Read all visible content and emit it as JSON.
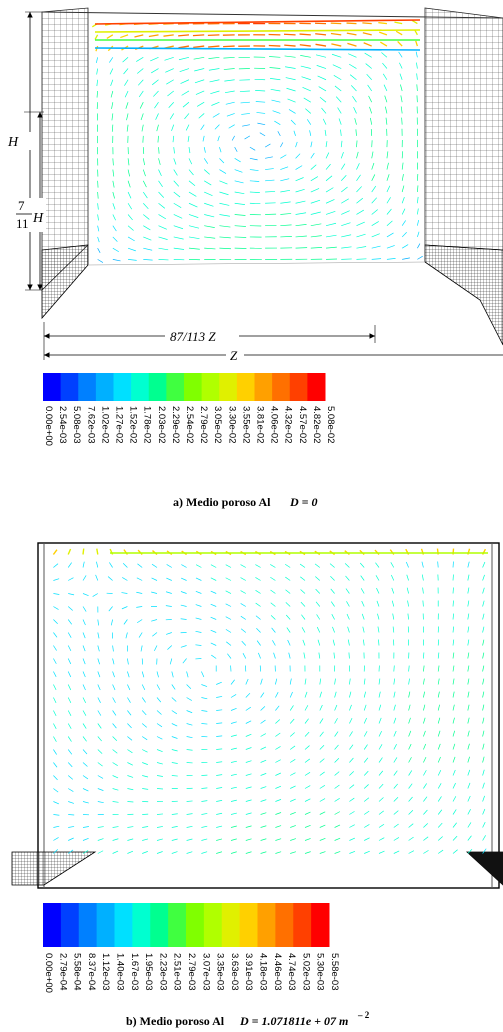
{
  "panel_a": {
    "dimension_labels": {
      "h": "H",
      "frac_num": "7",
      "frac_den": "11",
      "frac_var": "H",
      "inner_width": "87/113 Z",
      "outer_width": "Z"
    },
    "colorbar_ticks": [
      "0.00e+00",
      "2.54e-03",
      "5.08e-03",
      "7.62e-03",
      "1.02e-02",
      "1.27e-02",
      "1.52e-02",
      "1.78e-02",
      "2.03e-02",
      "2.29e-02",
      "2.54e-02",
      "2.79e-02",
      "3.05e-02",
      "3.30e-02",
      "3.55e-02",
      "3.81e-02",
      "4.06e-02",
      "4.32e-02",
      "4.57e-02",
      "4.82e-02",
      "5.08e-02"
    ],
    "caption": {
      "prefix": "a) Medio poroso Al",
      "eq": "D = 0"
    }
  },
  "panel_b": {
    "colorbar_ticks": [
      "0.00e+00",
      "2.79e-04",
      "5.58e-04",
      "8.37e-04",
      "1.12e-03",
      "1.40e-03",
      "1.67e-03",
      "1.95e-03",
      "2.23e-03",
      "2.51e-03",
      "2.79e-03",
      "3.07e-03",
      "3.35e-03",
      "3.63e-03",
      "3.91e-03",
      "4.18e-03",
      "4.46e-03",
      "4.74e-03",
      "5.02e-03",
      "5.30e-03",
      "5.58e-03"
    ],
    "caption": {
      "prefix": "b) Medio poroso Al",
      "eq": "D = 1.071811e + 07 m",
      "exp": "– 2"
    }
  },
  "colormap": [
    "#0000ff",
    "#0040ff",
    "#0080ff",
    "#00b0ff",
    "#00e0ff",
    "#00ffd0",
    "#00ff90",
    "#40ff40",
    "#80ff00",
    "#b0ff00",
    "#e0f000",
    "#ffd000",
    "#ffa000",
    "#ff7000",
    "#ff4000",
    "#ff0000"
  ]
}
